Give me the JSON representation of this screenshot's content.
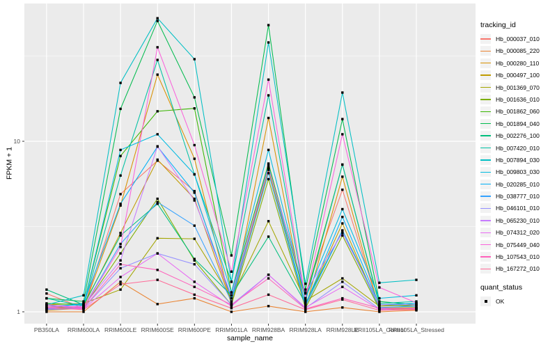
{
  "theme": {
    "figure_bg": "#FFFFFF",
    "panel_bg": "#EBEBEB",
    "grid_color": "#FFFFFF",
    "tick_mark_color": "#333333",
    "tick_label_color": "#4D4D4D",
    "title_color": "#000000",
    "point_color": "#000000",
    "legend_key_bg": "#F2F2F2"
  },
  "chart_data": {
    "type": "line",
    "title": "",
    "xlabel": "sample_name",
    "ylabel": "FPKM + 1",
    "y_scale": "log10",
    "ylim": [
      0.85,
      64
    ],
    "y_ticks": [
      1,
      10
    ],
    "y_minor_ticks": [
      3.1623,
      31.623
    ],
    "grid": true,
    "legend_position": "right",
    "point_shape": "filled-square",
    "legend": {
      "color_title": "tracking_id",
      "shape_title": "quant_status",
      "shape_items": [
        "OK"
      ]
    },
    "categories": [
      "PB350LA",
      "RRIM600LA",
      "RRIM600LE",
      "RRIM600SE",
      "RRIM600PE",
      "RRIM901LA",
      "RRIM928BA",
      "RRIM928LA",
      "RRIM928LE",
      "RRII105LA_Control",
      "RRII105LA_Stressed"
    ],
    "series": [
      {
        "name": "Hb_000037_010",
        "color": "#F8766D",
        "values": [
          1.28,
          1.05,
          4.9,
          7.7,
          5.1,
          1.15,
          7.0,
          1.28,
          5.2,
          1.05,
          1.05
        ]
      },
      {
        "name": "Hb_000085_220",
        "color": "#EA8331",
        "values": [
          1.0,
          1.0,
          1.5,
          1.11,
          1.2,
          1.0,
          1.08,
          1.0,
          1.06,
          1.0,
          1.02
        ]
      },
      {
        "name": "Hb_000280_110",
        "color": "#D89000",
        "values": [
          1.02,
          1.05,
          4.2,
          24.6,
          7.9,
          1.1,
          13.7,
          1.05,
          6.2,
          1.03,
          1.04
        ]
      },
      {
        "name": "Hb_000497_100",
        "color": "#C09B00",
        "values": [
          1.05,
          1.08,
          2.9,
          7.8,
          4.6,
          1.12,
          6.8,
          1.1,
          3.3,
          1.05,
          1.06
        ]
      },
      {
        "name": "Hb_001369_070",
        "color": "#A3A500",
        "values": [
          1.1,
          1.12,
          1.35,
          2.7,
          2.68,
          1.2,
          3.4,
          1.16,
          1.57,
          1.08,
          1.1
        ]
      },
      {
        "name": "Hb_001636_010",
        "color": "#7CAE00",
        "values": [
          1.05,
          1.06,
          2.2,
          4.6,
          2.0,
          1.1,
          6.0,
          1.05,
          2.8,
          1.04,
          1.05
        ]
      },
      {
        "name": "Hb_001862_060",
        "color": "#39B600",
        "values": [
          1.12,
          1.1,
          8.2,
          15.0,
          15.6,
          1.3,
          7.4,
          1.2,
          7.3,
          1.1,
          1.08
        ]
      },
      {
        "name": "Hb_001894_040",
        "color": "#00BB4E",
        "values": [
          1.2,
          1.15,
          15.5,
          50.8,
          18.1,
          2.14,
          48.0,
          1.35,
          13.5,
          1.15,
          1.1
        ]
      },
      {
        "name": "Hb_002276_100",
        "color": "#00BF7D",
        "values": [
          1.35,
          1.1,
          2.8,
          4.3,
          2.04,
          1.25,
          2.76,
          1.12,
          3.0,
          1.1,
          1.12
        ]
      },
      {
        "name": "Hb_007420_010",
        "color": "#00C1A3",
        "values": [
          1.2,
          1.08,
          6.3,
          30.0,
          6.4,
          1.5,
          18.6,
          1.15,
          7.3,
          1.12,
          1.15
        ]
      },
      {
        "name": "Hb_007894_030",
        "color": "#00BFC4",
        "values": [
          1.1,
          1.25,
          22.0,
          52.7,
          30.3,
          1.5,
          38.0,
          1.46,
          19.3,
          1.48,
          1.54
        ]
      },
      {
        "name": "Hb_009803_030",
        "color": "#00BAE0",
        "values": [
          1.08,
          1.1,
          8.9,
          11.0,
          6.4,
          1.3,
          8.9,
          1.2,
          4.0,
          1.2,
          1.25
        ]
      },
      {
        "name": "Hb_020285_010",
        "color": "#00B0F6",
        "values": [
          1.05,
          1.12,
          4.3,
          9.3,
          5.0,
          1.2,
          7.2,
          1.1,
          3.6,
          1.1,
          1.12
        ]
      },
      {
        "name": "Hb_038777_010",
        "color": "#35A2FF",
        "values": [
          1.04,
          1.06,
          2.5,
          4.4,
          3.2,
          1.15,
          6.5,
          1.08,
          3.0,
          1.06,
          1.08
        ]
      },
      {
        "name": "Hb_046101_010",
        "color": "#9590FF",
        "values": [
          1.03,
          1.05,
          1.8,
          2.2,
          1.9,
          1.1,
          1.65,
          1.05,
          1.5,
          1.04,
          1.05
        ]
      },
      {
        "name": "Hb_065230_010",
        "color": "#C77CFF",
        "values": [
          1.06,
          1.08,
          2.0,
          9.35,
          4.5,
          1.25,
          7.0,
          1.3,
          2.9,
          1.1,
          1.1
        ]
      },
      {
        "name": "Hb_074312_020",
        "color": "#E76BF3",
        "values": [
          1.05,
          1.04,
          1.6,
          2.2,
          1.5,
          1.08,
          1.65,
          1.06,
          1.4,
          1.03,
          1.05
        ]
      },
      {
        "name": "Hb_075449_040",
        "color": "#FA62DB",
        "values": [
          1.1,
          1.06,
          2.4,
          35.6,
          9.5,
          1.72,
          23.0,
          1.2,
          11.0,
          1.39,
          1.13
        ]
      },
      {
        "name": "Hb_107543_010",
        "color": "#FF62BC",
        "values": [
          1.08,
          1.05,
          1.9,
          1.76,
          1.4,
          1.1,
          1.57,
          1.04,
          1.2,
          1.05,
          1.04
        ]
      },
      {
        "name": "Hb_167272_010",
        "color": "#FF6A98",
        "values": [
          1.06,
          1.03,
          1.45,
          1.54,
          1.26,
          1.05,
          1.26,
          1.03,
          1.18,
          1.02,
          1.03
        ]
      }
    ]
  }
}
